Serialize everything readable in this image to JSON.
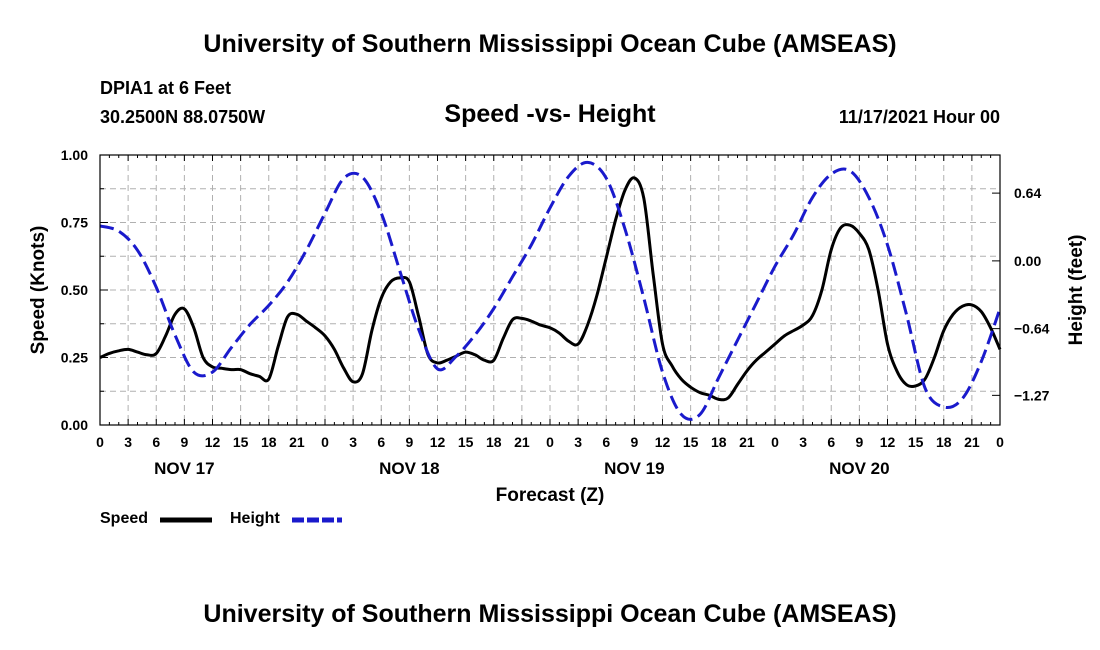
{
  "header": {
    "title": "University of Southern Mississippi Ocean Cube (AMSEAS)",
    "station": "DPIA1 at 6 Feet",
    "coords": "30.2500N  88.0750W",
    "subtitle": "Speed -vs- Height",
    "datetime": "11/17/2021 Hour 00"
  },
  "footer": {
    "title": "University of Southern Mississippi Ocean Cube (AMSEAS)"
  },
  "legend": {
    "speed_label": "Speed",
    "height_label": "Height"
  },
  "colors": {
    "speed": "#000000",
    "height": "#1a1acc",
    "grid": "#b0b0b0"
  },
  "chart_data": {
    "type": "line",
    "title": "Speed -vs- Height",
    "xlabel": "Forecast (Z)",
    "ylabel": "Speed (Knots)",
    "y2label": "Height (feet)",
    "xlim": [
      0,
      96
    ],
    "ylim": [
      0,
      1
    ],
    "y2lim": [
      -1.55,
      1.0
    ],
    "xticks": [
      0,
      3,
      6,
      9,
      12,
      15,
      18,
      21,
      24,
      27,
      30,
      33,
      36,
      39,
      42,
      45,
      48,
      51,
      54,
      57,
      60,
      63,
      66,
      69,
      72,
      75,
      78,
      81,
      84,
      87,
      90,
      93,
      96
    ],
    "xtick_labels": [
      "0",
      "3",
      "6",
      "9",
      "12",
      "15",
      "18",
      "21",
      "0",
      "3",
      "6",
      "9",
      "12",
      "15",
      "18",
      "21",
      "0",
      "3",
      "6",
      "9",
      "12",
      "15",
      "18",
      "21",
      "0",
      "3",
      "6",
      "9",
      "12",
      "15",
      "18",
      "21",
      "0"
    ],
    "day_labels": [
      {
        "label": "NOV 17",
        "x": 9
      },
      {
        "label": "NOV 18",
        "x": 33
      },
      {
        "label": "NOV 19",
        "x": 57
      },
      {
        "label": "NOV 20",
        "x": 81
      }
    ],
    "yticks": [
      0.0,
      0.25,
      0.5,
      0.75,
      1.0
    ],
    "ytick_labels": [
      "0.00",
      "0.25",
      "0.50",
      "0.75",
      "1.00"
    ],
    "y2ticks": [
      -1.27,
      -0.64,
      0.0,
      0.64
    ],
    "y2tick_labels": [
      "−1.27",
      "−0.64",
      "0.00",
      "0.64"
    ],
    "series": [
      {
        "name": "Speed",
        "axis": "left",
        "style": "solid",
        "x": [
          0,
          1,
          2,
          3,
          4,
          5,
          6,
          7,
          8,
          9,
          10,
          11,
          12,
          13,
          14,
          15,
          16,
          17,
          18,
          19,
          20,
          21,
          22,
          23,
          24,
          25,
          26,
          27,
          28,
          29,
          30,
          31,
          32,
          33,
          34,
          35,
          36,
          37,
          38,
          39,
          40,
          41,
          42,
          43,
          44,
          45,
          46,
          47,
          48,
          49,
          50,
          51,
          52,
          53,
          54,
          55,
          56,
          57,
          58,
          59,
          60,
          61,
          62,
          63,
          64,
          65,
          66,
          67,
          68,
          69,
          70,
          71,
          72,
          73,
          74,
          75,
          76,
          77,
          78,
          79,
          80,
          81,
          82,
          83,
          84,
          85,
          86,
          87,
          88,
          89,
          90,
          91,
          92,
          93,
          94,
          95,
          96
        ],
        "values": [
          0.25,
          0.265,
          0.275,
          0.28,
          0.27,
          0.26,
          0.265,
          0.33,
          0.41,
          0.43,
          0.36,
          0.25,
          0.215,
          0.21,
          0.205,
          0.205,
          0.19,
          0.18,
          0.17,
          0.29,
          0.4,
          0.41,
          0.385,
          0.36,
          0.33,
          0.28,
          0.21,
          0.16,
          0.19,
          0.35,
          0.47,
          0.53,
          0.545,
          0.53,
          0.4,
          0.26,
          0.23,
          0.24,
          0.255,
          0.27,
          0.26,
          0.24,
          0.24,
          0.32,
          0.39,
          0.395,
          0.385,
          0.37,
          0.36,
          0.34,
          0.31,
          0.3,
          0.37,
          0.48,
          0.62,
          0.76,
          0.87,
          0.915,
          0.84,
          0.56,
          0.3,
          0.22,
          0.17,
          0.14,
          0.12,
          0.11,
          0.095,
          0.1,
          0.15,
          0.2,
          0.24,
          0.27,
          0.3,
          0.33,
          0.35,
          0.37,
          0.405,
          0.5,
          0.65,
          0.73,
          0.74,
          0.71,
          0.65,
          0.5,
          0.3,
          0.2,
          0.15,
          0.145,
          0.17,
          0.25,
          0.35,
          0.41,
          0.44,
          0.445,
          0.42,
          0.36,
          0.28
        ]
      },
      {
        "name": "Height",
        "axis": "right",
        "style": "dashed",
        "x": [
          0,
          2,
          4,
          6,
          8,
          10,
          12,
          14,
          16,
          18,
          20,
          22,
          24,
          26,
          28,
          30,
          32,
          34,
          36,
          38,
          40,
          42,
          44,
          46,
          48,
          50,
          52,
          54,
          56,
          58,
          60,
          62,
          64,
          66,
          68,
          70,
          72,
          74,
          76,
          78,
          80,
          82,
          84,
          86,
          88,
          90,
          92,
          94,
          96
        ],
        "values": [
          0.33,
          0.28,
          0.1,
          -0.25,
          -0.7,
          -1.05,
          -1.05,
          -0.82,
          -0.6,
          -0.42,
          -0.2,
          0.1,
          0.45,
          0.78,
          0.79,
          0.45,
          -0.1,
          -0.65,
          -1.02,
          -0.9,
          -0.7,
          -0.45,
          -0.15,
          0.15,
          0.5,
          0.8,
          0.93,
          0.78,
          0.3,
          -0.35,
          -1.05,
          -1.45,
          -1.45,
          -1.1,
          -0.75,
          -0.4,
          -0.05,
          0.25,
          0.6,
          0.82,
          0.85,
          0.6,
          0.15,
          -0.5,
          -1.2,
          -1.38,
          -1.3,
          -0.95,
          -0.45
        ]
      }
    ]
  }
}
